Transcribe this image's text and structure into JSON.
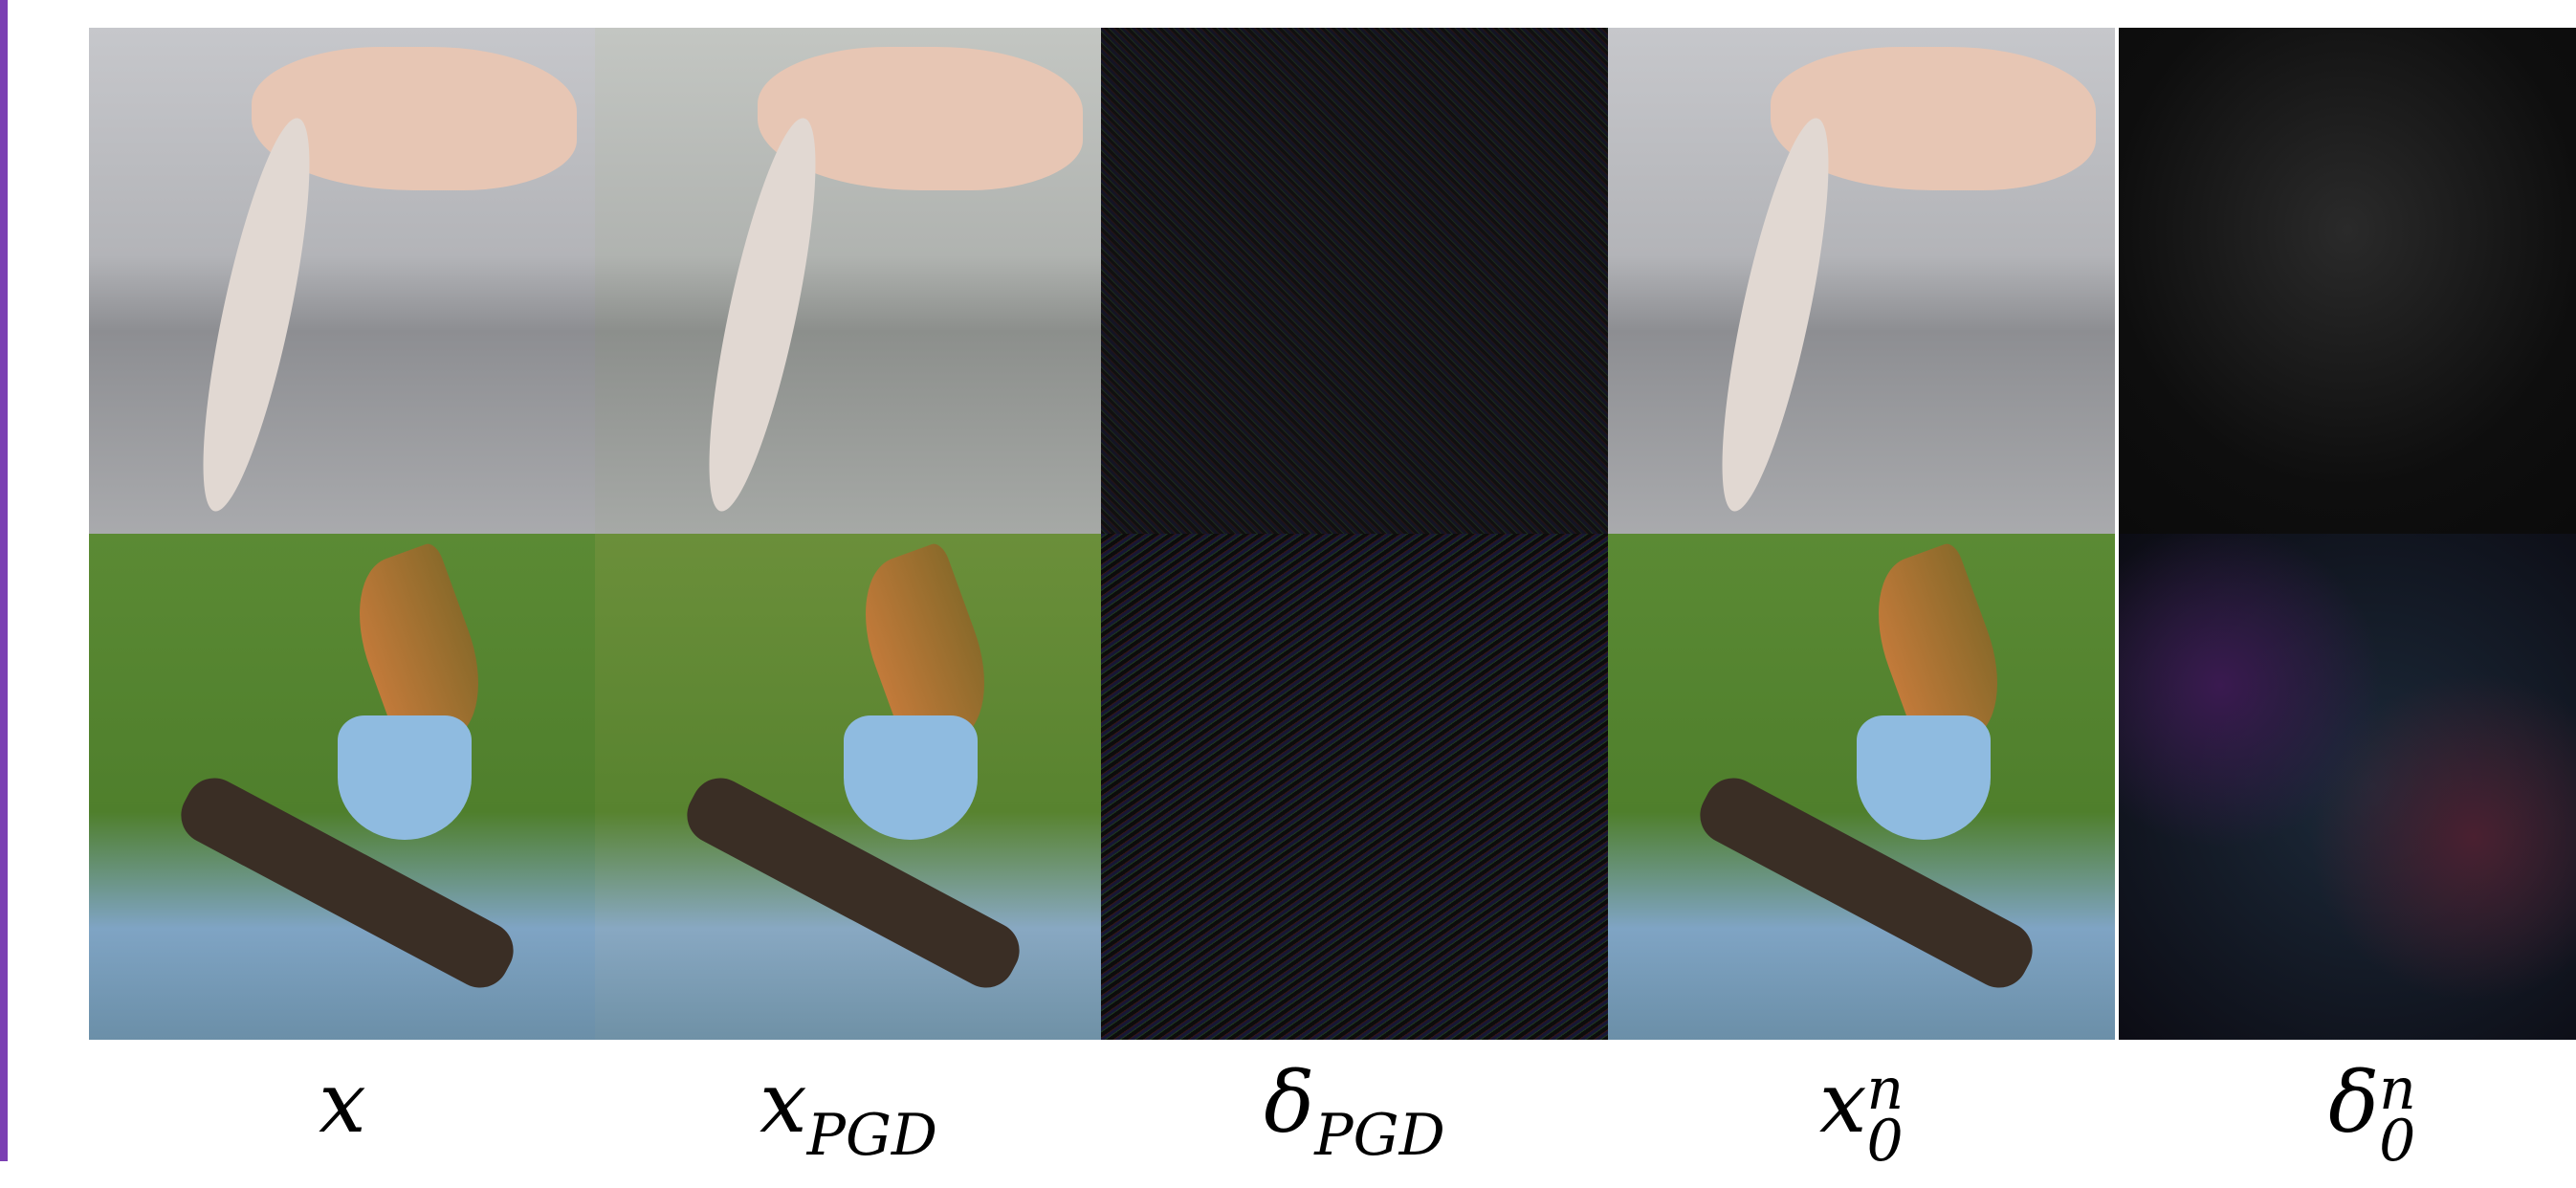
{
  "figure": {
    "columns": [
      {
        "base": "x"
      },
      {
        "base": "x",
        "sub": "PGD"
      },
      {
        "base": "δ",
        "sub": "PGD"
      },
      {
        "base": "x",
        "sub": "0",
        "sup": "n"
      },
      {
        "base": "δ",
        "sub": "0",
        "sup": "n"
      }
    ]
  }
}
